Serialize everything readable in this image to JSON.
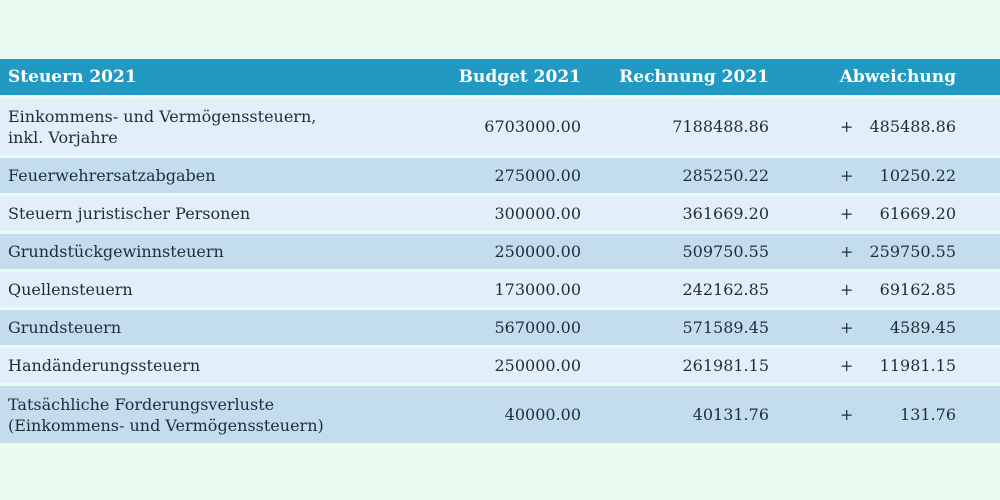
{
  "table": {
    "headers": {
      "category": "Steuern 2021",
      "budget": "Budget 2021",
      "actual": "Rechnung 2021",
      "deviation": "Abweichung"
    },
    "rows": [
      {
        "label_lines": [
          "Einkommens- und Vermögenssteuern,",
          "inkl. Vorjahre"
        ],
        "budget": "6703000.00",
        "actual": "7188488.86",
        "sign": "+",
        "deviation": "485488.86"
      },
      {
        "label_lines": [
          "Feuerwehrersatzabgaben"
        ],
        "budget": "275000.00",
        "actual": "285250.22",
        "sign": "+",
        "deviation": "10250.22"
      },
      {
        "label_lines": [
          "Steuern juristischer Personen"
        ],
        "budget": "300000.00",
        "actual": "361669.20",
        "sign": "+",
        "deviation": "61669.20"
      },
      {
        "label_lines": [
          "Grundstückgewinnsteuern"
        ],
        "budget": "250000.00",
        "actual": "509750.55",
        "sign": "+",
        "deviation": "259750.55"
      },
      {
        "label_lines": [
          "Quellensteuern"
        ],
        "budget": "173000.00",
        "actual": "242162.85",
        "sign": "+",
        "deviation": "69162.85"
      },
      {
        "label_lines": [
          "Grundsteuern"
        ],
        "budget": "567000.00",
        "actual": "571589.45",
        "sign": "+",
        "deviation": "4589.45"
      },
      {
        "label_lines": [
          "Handänderungssteuern"
        ],
        "budget": "250000.00",
        "actual": "261981.15",
        "sign": "+",
        "deviation": "11981.15"
      },
      {
        "label_lines": [
          "Tatsächliche Forderungsverluste",
          "(Einkommens- und Vermögenssteuern)"
        ],
        "budget": "40000.00",
        "actual": "40131.76",
        "sign": "+",
        "deviation": "131.76"
      }
    ]
  },
  "colors": {
    "header_bg": "#2199c3",
    "row_light": "#e3eff8",
    "row_dark": "#c4dded",
    "page_bg": "#eafcf2"
  }
}
